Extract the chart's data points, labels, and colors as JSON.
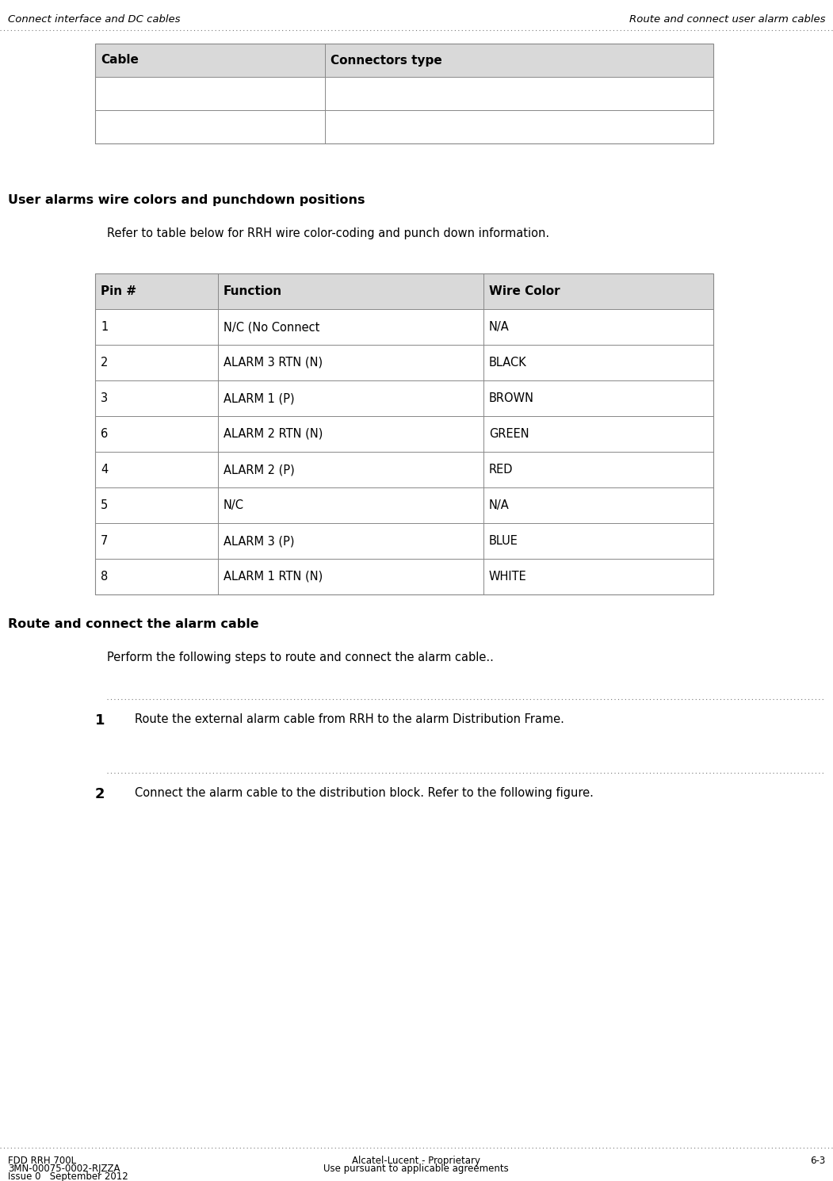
{
  "header_left": "Connect interface and DC cables",
  "header_right": "Route and connect user alarm cables",
  "page_bg": "#ffffff",
  "table1_headers": [
    "Cable",
    "Connectors type"
  ],
  "table1_header_bg": "#d9d9d9",
  "table1_rows": [
    [
      "",
      ""
    ],
    [
      "",
      ""
    ]
  ],
  "section1_title": "User alarms wire colors and punchdown positions",
  "section1_intro": "Refer to table below for RRH wire color-coding and punch down information.",
  "table2_headers": [
    "Pin #",
    "Function",
    "Wire Color"
  ],
  "table2_header_bg": "#d9d9d9",
  "table2_rows": [
    [
      "1",
      "N/C (No Connect",
      "N/A"
    ],
    [
      "2",
      "ALARM 3 RTN (N)",
      "BLACK"
    ],
    [
      "3",
      "ALARM 1 (P)",
      "BROWN"
    ],
    [
      "6",
      "ALARM 2 RTN (N)",
      "GREEN"
    ],
    [
      "4",
      "ALARM 2 (P)",
      "RED"
    ],
    [
      "5",
      "N/C",
      "N/A"
    ],
    [
      "7",
      "ALARM 3 (P)",
      "BLUE"
    ],
    [
      "8",
      "ALARM 1 RTN (N)",
      "WHITE"
    ]
  ],
  "section2_title": "Route and connect the alarm cable",
  "section2_intro": "Perform the following steps to route and connect the alarm cable..",
  "step1_num": "1",
  "step1_text": "Route the external alarm cable from RRH to the alarm Distribution Frame.",
  "step2_num": "2",
  "step2_text": "Connect the alarm cable to the distribution block. Refer to the following figure.",
  "footer_left1": "FDD RRH 700L",
  "footer_left2": "3MN-00075-0002-RJZZA",
  "footer_left3": "Issue 0   September 2012",
  "footer_center1": "Alcatel-Lucent - Proprietary",
  "footer_center2": "Use pursuant to applicable agreements",
  "footer_right": "6-3",
  "border_color": "#888888",
  "text_color": "#000000",
  "fs_page_header": 9.5,
  "fs_section_title": 11.5,
  "fs_body": 10.5,
  "fs_table_header": 11.0,
  "fs_table_body": 10.5,
  "fs_step_num": 13.0,
  "fs_footer": 8.5
}
